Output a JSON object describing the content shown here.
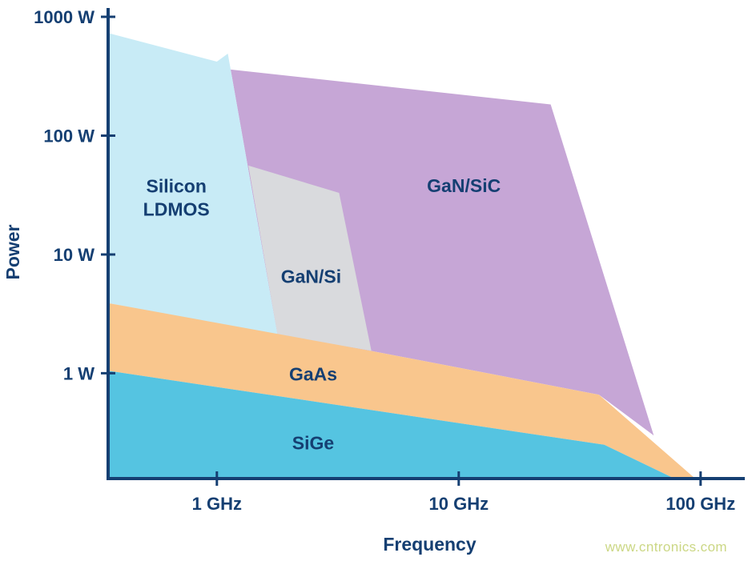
{
  "page": {
    "background": "#ffffff",
    "watermark": {
      "text": "www.cntronics.com",
      "color": "#cbd784"
    }
  },
  "chart_data": {
    "type": "area",
    "title": "",
    "xlabel": "Frequency",
    "ylabel": "Power",
    "x_scale": "log",
    "y_scale": "log",
    "xlim": [
      0.355,
      150
    ],
    "ylim": [
      0.13,
      1150
    ],
    "grid": false,
    "legend": "none",
    "axis_color": "#153f72",
    "label_color": "#153f72",
    "x_ticks": [
      {
        "value": 1,
        "label": "1 GHz"
      },
      {
        "value": 10,
        "label": "10 GHz"
      },
      {
        "value": 100,
        "label": "100 GHz"
      }
    ],
    "y_ticks": [
      {
        "value": 1,
        "label": "1 W"
      },
      {
        "value": 10,
        "label": "10 W"
      },
      {
        "value": 100,
        "label": "100 W"
      },
      {
        "value": 1000,
        "label": "1000 W"
      }
    ],
    "regions": [
      {
        "name": "GaN/SiC",
        "color": "#c6a6d6",
        "label_pos": [
          10.5,
          38
        ],
        "points_ghz_w": [
          [
            1.14,
            360
          ],
          [
            24,
            183
          ],
          [
            64,
            0.3
          ],
          [
            38,
            0.66
          ],
          [
            4.3,
            1.55
          ],
          [
            1.78,
            2.1
          ]
        ]
      },
      {
        "name": "GaN/Si",
        "color": "#d9dadd",
        "label_pos": [
          2.45,
          6.5
        ],
        "points_ghz_w": [
          [
            1.35,
            56
          ],
          [
            3.2,
            33
          ],
          [
            4.35,
            1.55
          ],
          [
            1.78,
            2.1
          ]
        ]
      },
      {
        "name": "Silicon LDMOS",
        "label_lines": [
          "Silicon",
          "LDMOS"
        ],
        "color": "#c8ebf6",
        "label_pos": [
          0.68,
          30
        ],
        "points_ghz_w": [
          [
            0.355,
            730
          ],
          [
            1.0,
            420
          ],
          [
            1.11,
            490
          ],
          [
            1.78,
            2.1
          ],
          [
            0.355,
            3.9
          ]
        ]
      },
      {
        "name": "GaAs",
        "color": "#f9c68d",
        "label_pos": [
          2.5,
          0.98
        ],
        "points_ghz_w": [
          [
            0.355,
            3.9
          ],
          [
            4.3,
            1.55
          ],
          [
            38,
            0.66
          ],
          [
            95,
            0.13
          ],
          [
            78,
            0.13
          ],
          [
            40,
            0.25
          ],
          [
            0.355,
            1.05
          ]
        ]
      },
      {
        "name": "SiGe",
        "color": "#55c4e1",
        "label_pos": [
          2.5,
          0.26
        ],
        "points_ghz_w": [
          [
            0.355,
            1.05
          ],
          [
            40,
            0.25
          ],
          [
            78,
            0.13
          ],
          [
            0.355,
            0.13
          ]
        ]
      }
    ]
  }
}
